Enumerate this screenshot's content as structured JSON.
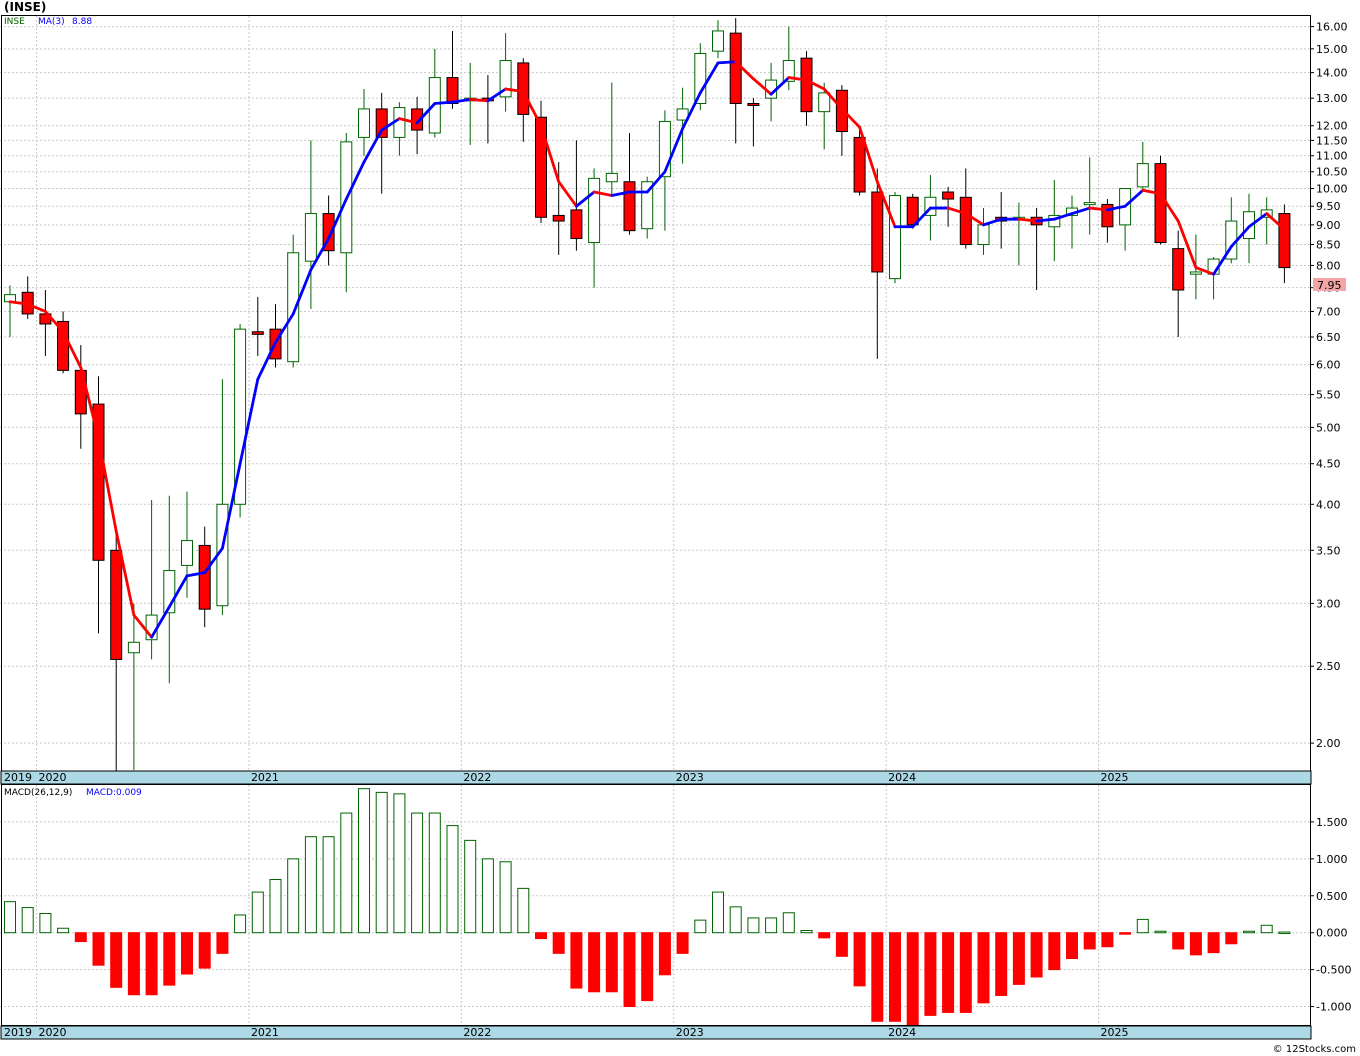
{
  "title": "(INSE)",
  "watermark": "© 12Stocks.com",
  "colors": {
    "up": "#006400",
    "down": "#ff0000",
    "ma_up": "#0000ff",
    "ma_down": "#ff0000",
    "axis_band": "#add8e6",
    "last_price_bg": "#f4a6a6"
  },
  "price_legend": {
    "symbol": "INSE",
    "ma_label": "MA(3)",
    "ma_value": "8.88"
  },
  "macd_legend": {
    "label": "MACD(26,12,9)",
    "value": "MACD:0.009"
  },
  "last_price_label": "7.95",
  "chart_data": [
    {
      "type": "candlestick",
      "interval": "monthly",
      "scale": "log",
      "ylim": [
        1.85,
        16.5
      ],
      "y_ticks": [
        "2.00",
        "2.50",
        "3.00",
        "3.50",
        "4.00",
        "4.50",
        "5.00",
        "5.50",
        "6.00",
        "6.50",
        "7.00",
        "7.50",
        "8.00",
        "8.50",
        "9.00",
        "9.50",
        "10.00",
        "10.50",
        "11.00",
        "11.50",
        "12.00",
        "13.00",
        "14.00",
        "15.00",
        "16.00"
      ],
      "x_labels": [
        "2019",
        "2020",
        "2021",
        "2022",
        "2023",
        "2024",
        "2025"
      ],
      "grid": true,
      "candles": [
        {
          "date": "2019-11",
          "o": 7.2,
          "h": 7.55,
          "l": 6.5,
          "c": 7.35
        },
        {
          "date": "2019-12",
          "o": 7.4,
          "h": 7.75,
          "l": 6.85,
          "c": 6.95
        },
        {
          "date": "2020-01",
          "o": 6.95,
          "h": 7.45,
          "l": 6.15,
          "c": 6.75
        },
        {
          "date": "2020-02",
          "o": 6.8,
          "h": 7.0,
          "l": 5.85,
          "c": 5.9
        },
        {
          "date": "2020-03",
          "o": 5.9,
          "h": 6.35,
          "l": 4.7,
          "c": 5.2
        },
        {
          "date": "2020-04",
          "o": 5.35,
          "h": 5.8,
          "l": 2.75,
          "c": 3.4
        },
        {
          "date": "2020-05",
          "o": 3.5,
          "h": 3.75,
          "l": 1.8,
          "c": 2.55
        },
        {
          "date": "2020-06",
          "o": 2.6,
          "h": 3.0,
          "l": 1.85,
          "c": 2.68
        },
        {
          "date": "2020-07",
          "o": 2.7,
          "h": 4.05,
          "l": 2.55,
          "c": 2.9
        },
        {
          "date": "2020-08",
          "o": 2.92,
          "h": 4.1,
          "l": 2.38,
          "c": 3.3
        },
        {
          "date": "2020-09",
          "o": 3.35,
          "h": 4.15,
          "l": 3.05,
          "c": 3.6
        },
        {
          "date": "2020-10",
          "o": 3.55,
          "h": 3.75,
          "l": 2.8,
          "c": 2.95
        },
        {
          "date": "2020-11",
          "o": 2.98,
          "h": 5.75,
          "l": 2.9,
          "c": 4.0
        },
        {
          "date": "2020-12",
          "o": 4.0,
          "h": 6.75,
          "l": 3.85,
          "c": 6.65
        },
        {
          "date": "2021-01",
          "o": 6.6,
          "h": 7.3,
          "l": 6.15,
          "c": 6.55
        },
        {
          "date": "2021-02",
          "o": 6.65,
          "h": 7.15,
          "l": 5.95,
          "c": 6.1
        },
        {
          "date": "2021-03",
          "o": 6.05,
          "h": 8.75,
          "l": 5.95,
          "c": 8.3
        },
        {
          "date": "2021-04",
          "o": 8.1,
          "h": 11.5,
          "l": 7.05,
          "c": 9.3
        },
        {
          "date": "2021-05",
          "o": 9.3,
          "h": 9.8,
          "l": 8.0,
          "c": 8.35
        },
        {
          "date": "2021-06",
          "o": 8.3,
          "h": 11.75,
          "l": 7.4,
          "c": 11.45
        },
        {
          "date": "2021-07",
          "o": 11.6,
          "h": 13.35,
          "l": 11.0,
          "c": 12.6
        },
        {
          "date": "2021-08",
          "o": 12.6,
          "h": 13.2,
          "l": 9.85,
          "c": 11.6
        },
        {
          "date": "2021-09",
          "o": 11.6,
          "h": 12.85,
          "l": 11.0,
          "c": 12.65
        },
        {
          "date": "2021-10",
          "o": 12.6,
          "h": 13.05,
          "l": 11.05,
          "c": 11.85
        },
        {
          "date": "2021-11",
          "o": 11.75,
          "h": 15.0,
          "l": 11.6,
          "c": 13.8
        },
        {
          "date": "2021-12",
          "o": 13.8,
          "h": 15.8,
          "l": 12.6,
          "c": 12.8
        },
        {
          "date": "2022-01",
          "o": 12.9,
          "h": 14.4,
          "l": 11.35,
          "c": 13.0
        },
        {
          "date": "2022-02",
          "o": 13.0,
          "h": 13.9,
          "l": 11.4,
          "c": 12.9
        },
        {
          "date": "2022-03",
          "o": 13.05,
          "h": 15.7,
          "l": 12.5,
          "c": 14.5
        },
        {
          "date": "2022-04",
          "o": 14.4,
          "h": 14.6,
          "l": 11.45,
          "c": 12.4
        },
        {
          "date": "2022-05",
          "o": 12.3,
          "h": 12.9,
          "l": 9.05,
          "c": 9.2
        },
        {
          "date": "2022-06",
          "o": 9.25,
          "h": 10.8,
          "l": 8.25,
          "c": 9.1
        },
        {
          "date": "2022-07",
          "o": 9.4,
          "h": 11.5,
          "l": 8.35,
          "c": 8.65
        },
        {
          "date": "2022-08",
          "o": 8.55,
          "h": 10.6,
          "l": 7.5,
          "c": 10.3
        },
        {
          "date": "2022-09",
          "o": 10.2,
          "h": 13.6,
          "l": 9.8,
          "c": 10.45
        },
        {
          "date": "2022-10",
          "o": 10.2,
          "h": 11.75,
          "l": 8.75,
          "c": 8.85
        },
        {
          "date": "2022-11",
          "o": 8.9,
          "h": 10.35,
          "l": 8.65,
          "c": 10.2
        },
        {
          "date": "2022-12",
          "o": 10.35,
          "h": 12.55,
          "l": 8.85,
          "c": 12.15
        },
        {
          "date": "2023-01",
          "o": 12.2,
          "h": 13.4,
          "l": 10.75,
          "c": 12.6
        },
        {
          "date": "2023-02",
          "o": 12.8,
          "h": 15.25,
          "l": 12.55,
          "c": 14.8
        },
        {
          "date": "2023-03",
          "o": 14.9,
          "h": 16.3,
          "l": 14.6,
          "c": 15.8
        },
        {
          "date": "2023-04",
          "o": 15.7,
          "h": 16.4,
          "l": 11.4,
          "c": 12.8
        },
        {
          "date": "2023-05",
          "o": 12.8,
          "h": 13.0,
          "l": 11.3,
          "c": 12.75
        },
        {
          "date": "2023-06",
          "o": 13.0,
          "h": 14.4,
          "l": 12.15,
          "c": 13.7
        },
        {
          "date": "2023-07",
          "o": 13.65,
          "h": 16.0,
          "l": 13.3,
          "c": 14.5
        },
        {
          "date": "2023-08",
          "o": 14.6,
          "h": 14.9,
          "l": 12.0,
          "c": 12.5
        },
        {
          "date": "2023-09",
          "o": 12.5,
          "h": 13.6,
          "l": 11.2,
          "c": 13.2
        },
        {
          "date": "2023-10",
          "o": 13.3,
          "h": 13.5,
          "l": 11.0,
          "c": 11.8
        },
        {
          "date": "2023-11",
          "o": 11.6,
          "h": 12.0,
          "l": 9.8,
          "c": 9.9
        },
        {
          "date": "2023-12",
          "o": 9.9,
          "h": 10.6,
          "l": 6.1,
          "c": 7.85
        },
        {
          "date": "2024-01",
          "o": 7.7,
          "h": 9.9,
          "l": 7.6,
          "c": 9.8
        },
        {
          "date": "2024-02",
          "o": 9.75,
          "h": 9.85,
          "l": 8.9,
          "c": 9.0
        },
        {
          "date": "2024-03",
          "o": 9.25,
          "h": 10.4,
          "l": 8.6,
          "c": 9.75
        },
        {
          "date": "2024-04",
          "o": 9.9,
          "h": 10.05,
          "l": 8.95,
          "c": 9.7
        },
        {
          "date": "2024-05",
          "o": 9.75,
          "h": 10.6,
          "l": 8.4,
          "c": 8.5
        },
        {
          "date": "2024-06",
          "o": 8.5,
          "h": 9.45,
          "l": 8.25,
          "c": 9.0
        },
        {
          "date": "2024-07",
          "o": 9.2,
          "h": 9.9,
          "l": 8.4,
          "c": 9.1
        },
        {
          "date": "2024-08",
          "o": 9.15,
          "h": 9.6,
          "l": 8.0,
          "c": 9.2
        },
        {
          "date": "2024-09",
          "o": 9.2,
          "h": 9.45,
          "l": 7.45,
          "c": 9.0
        },
        {
          "date": "2024-10",
          "o": 8.95,
          "h": 10.25,
          "l": 8.1,
          "c": 9.25
        },
        {
          "date": "2024-11",
          "o": 9.25,
          "h": 9.8,
          "l": 8.4,
          "c": 9.45
        },
        {
          "date": "2024-12",
          "o": 9.55,
          "h": 10.95,
          "l": 8.75,
          "c": 9.6
        },
        {
          "date": "2025-01",
          "o": 9.55,
          "h": 9.7,
          "l": 8.55,
          "c": 8.95
        },
        {
          "date": "2025-02",
          "o": 9.0,
          "h": 9.95,
          "l": 8.35,
          "c": 10.0
        },
        {
          "date": "2025-03",
          "o": 10.05,
          "h": 11.45,
          "l": 9.95,
          "c": 10.75
        },
        {
          "date": "2025-04",
          "o": 10.75,
          "h": 11.0,
          "l": 8.5,
          "c": 8.55
        },
        {
          "date": "2025-05",
          "o": 8.4,
          "h": 8.85,
          "l": 6.5,
          "c": 7.45
        },
        {
          "date": "2025-06",
          "o": 7.8,
          "h": 8.75,
          "l": 7.25,
          "c": 7.85
        },
        {
          "date": "2025-07",
          "o": 7.8,
          "h": 8.2,
          "l": 7.25,
          "c": 8.15
        },
        {
          "date": "2025-08",
          "o": 8.15,
          "h": 9.75,
          "l": 8.05,
          "c": 9.1
        },
        {
          "date": "2025-09",
          "o": 8.65,
          "h": 9.85,
          "l": 8.05,
          "c": 9.35
        },
        {
          "date": "2025-10",
          "o": 9.2,
          "h": 9.75,
          "l": 8.5,
          "c": 9.4
        },
        {
          "date": "2025-11",
          "o": 9.3,
          "h": 9.55,
          "l": 7.6,
          "c": 7.95
        }
      ],
      "ma3": [
        7.2,
        7.15,
        7.0,
        6.6,
        5.95,
        4.85,
        3.7,
        2.9,
        2.72,
        2.97,
        3.25,
        3.28,
        3.52,
        4.5,
        5.75,
        6.4,
        6.95,
        7.9,
        8.65,
        9.7,
        10.8,
        11.85,
        12.25,
        12.1,
        12.8,
        12.85,
        12.95,
        12.9,
        13.35,
        13.25,
        12.0,
        10.2,
        9.5,
        9.9,
        9.8,
        9.9,
        9.9,
        10.5,
        11.9,
        13.2,
        14.4,
        14.45,
        13.75,
        13.15,
        13.8,
        13.7,
        13.35,
        12.6,
        11.95,
        10.2,
        8.95,
        8.95,
        9.45,
        9.45,
        9.3,
        9.0,
        9.15,
        9.15,
        9.1,
        9.15,
        9.3,
        9.45,
        9.4,
        9.5,
        9.95,
        9.85,
        9.1,
        7.95,
        7.8,
        8.45,
        8.95,
        9.3,
        8.88
      ],
      "ma_label": "MA(3)"
    },
    {
      "type": "bar",
      "interval": "monthly",
      "ylim": [
        -1.25,
        2.0
      ],
      "y_ticks": [
        "-1.000",
        "-0.500",
        "0.000",
        "0.500",
        "1.000",
        "1.500"
      ],
      "x_labels": [
        "2019",
        "2020",
        "2021",
        "2022",
        "2023",
        "2024",
        "2025"
      ],
      "legend": "MACD(26,12,9)",
      "values": [
        0.42,
        0.34,
        0.26,
        0.06,
        -0.12,
        -0.44,
        -0.74,
        -0.84,
        -0.84,
        -0.71,
        -0.56,
        -0.48,
        -0.28,
        0.24,
        0.55,
        0.72,
        1.0,
        1.3,
        1.3,
        1.62,
        1.95,
        1.9,
        1.88,
        1.62,
        1.62,
        1.45,
        1.25,
        1.0,
        0.96,
        0.6,
        -0.08,
        -0.28,
        -0.75,
        -0.8,
        -0.8,
        -1.0,
        -0.92,
        -0.57,
        -0.28,
        0.17,
        0.55,
        0.35,
        0.2,
        0.2,
        0.27,
        0.03,
        -0.07,
        -0.32,
        -0.72,
        -1.2,
        -1.2,
        -1.25,
        -1.12,
        -1.08,
        -1.08,
        -0.95,
        -0.85,
        -0.7,
        -0.6,
        -0.5,
        -0.35,
        -0.22,
        -0.19,
        -0.02,
        0.18,
        0.02,
        -0.22,
        -0.3,
        -0.27,
        -0.15,
        0.02,
        0.1,
        0.009
      ]
    }
  ]
}
